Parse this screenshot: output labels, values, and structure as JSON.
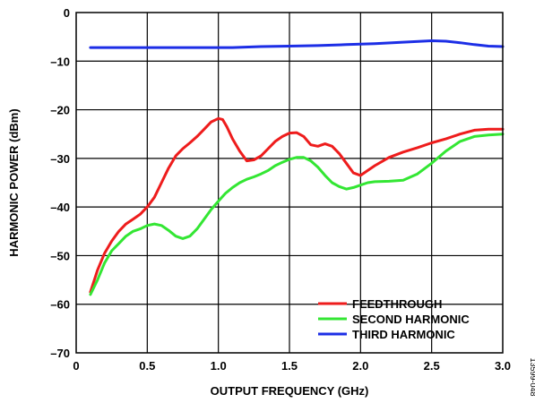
{
  "chart_data": {
    "type": "line",
    "xlabel": "OUTPUT FREQUENCY (GHz)",
    "ylabel": "HARMONIC POWER (dBm)",
    "xlim": [
      0,
      3.0
    ],
    "ylim": [
      -70,
      0
    ],
    "x_ticks": [
      0,
      0.5,
      1.0,
      1.5,
      2.0,
      2.5,
      3.0
    ],
    "x_tick_labels": [
      "0",
      "0.5",
      "1.0",
      "1.5",
      "2.0",
      "2.5",
      "3.0"
    ],
    "y_ticks": [
      0,
      -10,
      -20,
      -30,
      -40,
      -50,
      -60,
      -70
    ],
    "y_tick_labels": [
      "0",
      "–10",
      "–20",
      "–30",
      "–40",
      "–50",
      "–60",
      "–70"
    ],
    "grid": true,
    "legend_position": "bottom-right",
    "figure_id": "13599-048",
    "series": [
      {
        "name": "FEEDTHROUGH",
        "color": "#ee1c1c",
        "x": [
          0.1,
          0.15,
          0.2,
          0.25,
          0.3,
          0.35,
          0.4,
          0.45,
          0.5,
          0.55,
          0.6,
          0.65,
          0.7,
          0.75,
          0.8,
          0.85,
          0.9,
          0.95,
          1.0,
          1.03,
          1.06,
          1.1,
          1.15,
          1.2,
          1.25,
          1.3,
          1.35,
          1.4,
          1.45,
          1.5,
          1.55,
          1.6,
          1.65,
          1.7,
          1.75,
          1.8,
          1.85,
          1.9,
          1.95,
          2.0,
          2.05,
          2.1,
          2.2,
          2.3,
          2.4,
          2.5,
          2.6,
          2.7,
          2.8,
          2.9,
          3.0
        ],
        "y": [
          -57.5,
          -53,
          -49.5,
          -47,
          -45,
          -43.5,
          -42.5,
          -41.5,
          -40,
          -38,
          -35,
          -32,
          -29.5,
          -28,
          -26.8,
          -25.5,
          -24,
          -22.5,
          -21.8,
          -22,
          -23.5,
          -26,
          -28.5,
          -30.5,
          -30.3,
          -29.5,
          -28,
          -26.5,
          -25.5,
          -24.8,
          -24.7,
          -25.5,
          -27.2,
          -27.5,
          -27,
          -27.5,
          -29,
          -31,
          -33,
          -33.5,
          -32.5,
          -31.5,
          -29.8,
          -28.7,
          -27.8,
          -26.8,
          -26,
          -25,
          -24.2,
          -24,
          -24
        ]
      },
      {
        "name": "SECOND HARMONIC",
        "color": "#33e633",
        "x": [
          0.1,
          0.15,
          0.2,
          0.25,
          0.3,
          0.35,
          0.4,
          0.45,
          0.5,
          0.55,
          0.6,
          0.65,
          0.7,
          0.75,
          0.8,
          0.85,
          0.9,
          0.95,
          1.0,
          1.05,
          1.1,
          1.15,
          1.2,
          1.25,
          1.3,
          1.35,
          1.4,
          1.45,
          1.5,
          1.55,
          1.6,
          1.65,
          1.7,
          1.75,
          1.8,
          1.85,
          1.9,
          1.95,
          2.0,
          2.05,
          2.1,
          2.2,
          2.3,
          2.4,
          2.5,
          2.6,
          2.7,
          2.8,
          2.9,
          3.0
        ],
        "y": [
          -58,
          -55,
          -51.5,
          -49,
          -47.5,
          -46,
          -45,
          -44.5,
          -43.8,
          -43.5,
          -43.8,
          -44.8,
          -46,
          -46.5,
          -46,
          -44.5,
          -42.5,
          -40.5,
          -38.8,
          -37.2,
          -36,
          -35,
          -34.3,
          -33.8,
          -33.2,
          -32.5,
          -31.5,
          -30.8,
          -30.2,
          -29.8,
          -29.8,
          -30.5,
          -31.8,
          -33.5,
          -35,
          -35.8,
          -36.3,
          -36,
          -35.5,
          -35,
          -34.8,
          -34.7,
          -34.5,
          -33.2,
          -31,
          -28.5,
          -26.5,
          -25.5,
          -25.2,
          -25
        ]
      },
      {
        "name": "THIRD HARMONIC",
        "color": "#1c2ee6",
        "x": [
          0.1,
          0.3,
          0.5,
          0.7,
          0.9,
          1.1,
          1.3,
          1.5,
          1.7,
          1.9,
          2.1,
          2.3,
          2.5,
          2.6,
          2.7,
          2.8,
          2.9,
          3.0
        ],
        "y": [
          -7.2,
          -7.2,
          -7.2,
          -7.2,
          -7.2,
          -7.2,
          -7.0,
          -6.9,
          -6.8,
          -6.6,
          -6.4,
          -6.1,
          -5.8,
          -5.9,
          -6.2,
          -6.6,
          -6.9,
          -7.0
        ]
      }
    ]
  }
}
